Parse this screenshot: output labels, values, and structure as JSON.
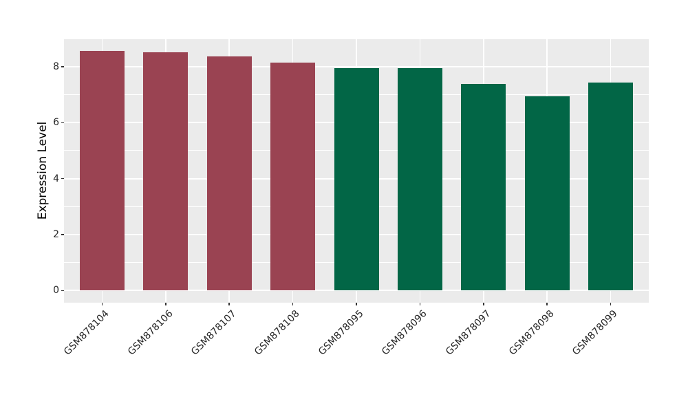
{
  "chart_data": {
    "type": "bar",
    "title": "",
    "xlabel": "",
    "ylabel": "Expression Level",
    "categories": [
      "GSM878104",
      "GSM878106",
      "GSM878107",
      "GSM878108",
      "GSM878095",
      "GSM878096",
      "GSM878097",
      "GSM878098",
      "GSM878099"
    ],
    "values": [
      8.56,
      8.51,
      8.36,
      8.14,
      7.96,
      7.96,
      7.38,
      6.95,
      7.43
    ],
    "bar_colors": [
      "#9a4352",
      "#9a4352",
      "#9a4352",
      "#9a4352",
      "#026646",
      "#026646",
      "#026646",
      "#026646",
      "#026646"
    ],
    "group_colors": {
      "left_group": "#9a4352",
      "right_group": "#026646"
    },
    "y_ticks": [
      0,
      2,
      4,
      6,
      8
    ],
    "y_tick_labels": [
      "0",
      "2",
      "4",
      "6",
      "8"
    ],
    "y_minor_ticks": [
      1,
      3,
      5,
      7
    ],
    "ylim": [
      -0.43,
      8.98
    ],
    "grid": true,
    "legend_position": "none",
    "x_label_rotation_deg": 45,
    "colors": {
      "figure_bg": "#ffffff",
      "panel_bg": "#ebebeb",
      "grid_major": "#ffffff",
      "grid_minor": "#ffffff",
      "tick_mark": "#333333",
      "tick_label": "#262626",
      "axis_title": "#000000"
    }
  }
}
